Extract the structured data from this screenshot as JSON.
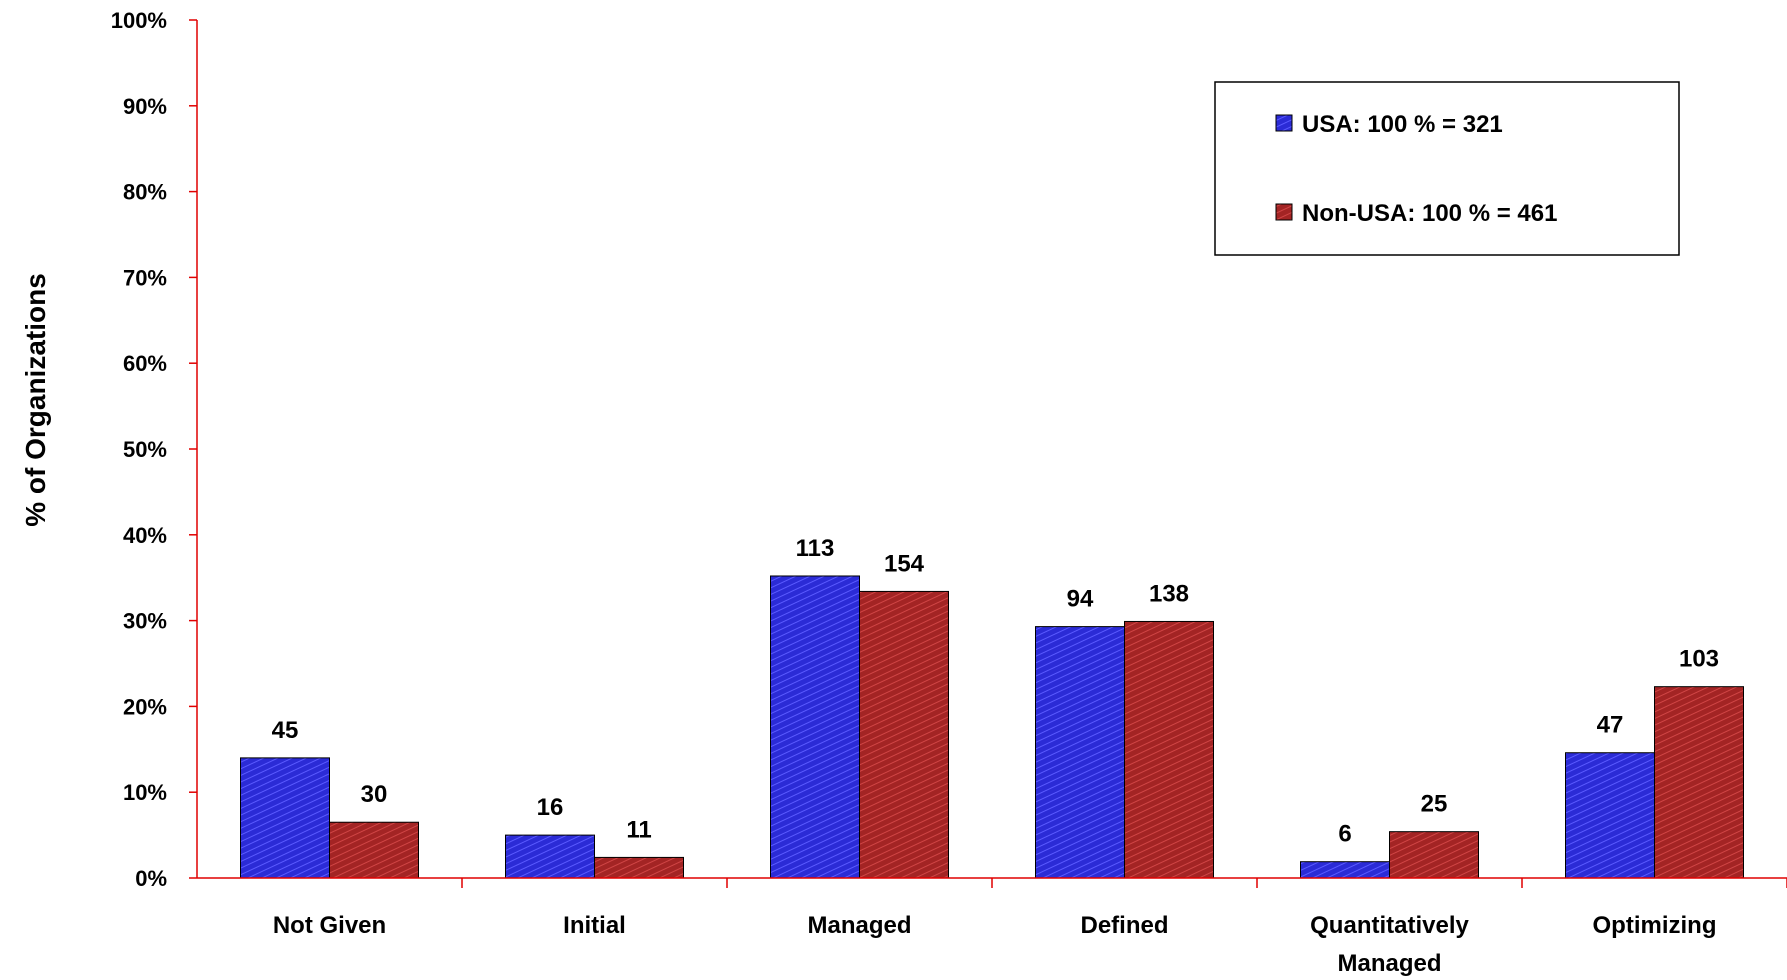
{
  "chart_data": {
    "type": "bar",
    "title": "",
    "xlabel": "",
    "ylabel": "% of Organizations",
    "ylim": [
      0,
      100
    ],
    "yticks": [
      "0%",
      "10%",
      "20%",
      "30%",
      "40%",
      "50%",
      "60%",
      "70%",
      "80%",
      "90%",
      "100%"
    ],
    "categories": [
      "Not Given",
      "Initial",
      "Managed",
      "Defined",
      "Quantitatively Managed",
      "Optimizing"
    ],
    "series": [
      {
        "name": "USA: 100 % = 321",
        "color": "#2b2bd6",
        "values": [
          14.0,
          5.0,
          35.2,
          29.3,
          1.9,
          14.6
        ],
        "data_labels": [
          "45",
          "16",
          "113",
          "94",
          "6",
          "47"
        ]
      },
      {
        "name": "Non-USA: 100 % = 461",
        "color": "#a32424",
        "values": [
          6.5,
          2.4,
          33.4,
          29.9,
          5.4,
          22.3
        ],
        "data_labels": [
          "30",
          "11",
          "154",
          "138",
          "25",
          "103"
        ]
      }
    ],
    "legend_position": "top-right",
    "grid": false,
    "axis_color": "#e00000"
  }
}
